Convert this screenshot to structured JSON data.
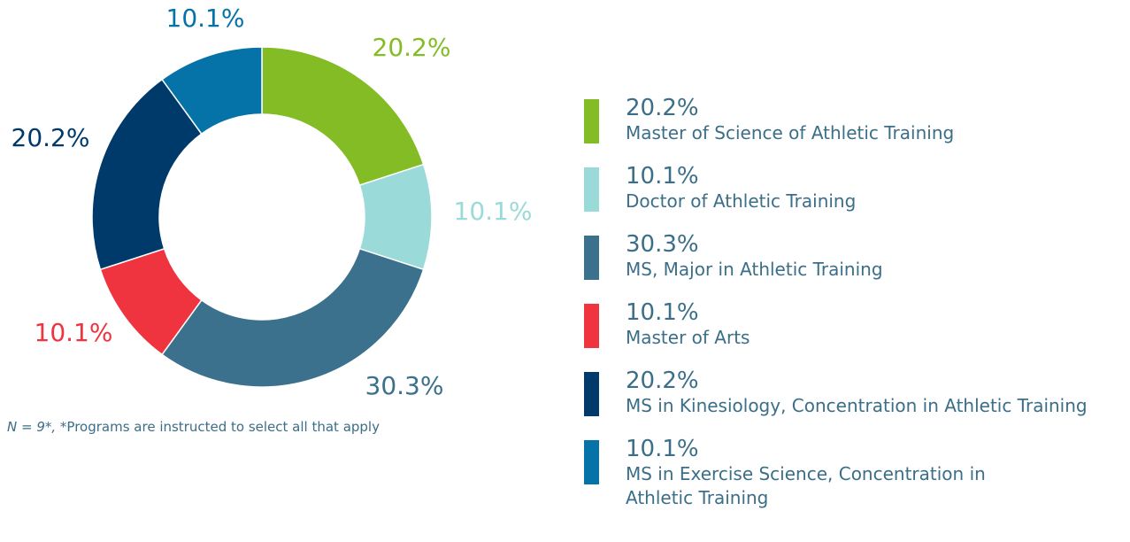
{
  "chart_data": {
    "type": "donut",
    "categories": [
      "Master of Science of Athletic Training",
      "Doctor of Athletic Training",
      "MS, Major in Athletic Training",
      "Master of Arts",
      "MS in Kinesiology, Concentration in Athletic Training",
      "MS in Exercise Science, Concentration in Athletic Training"
    ],
    "values": [
      20.2,
      10.1,
      30.3,
      10.1,
      20.2,
      10.1
    ],
    "value_labels": [
      "20.2%",
      "10.1%",
      "30.3%",
      "10.1%",
      "20.2%",
      "10.1%"
    ],
    "colors": [
      "#84bc26",
      "#9adad8",
      "#3b718c",
      "#f0343f",
      "#003a6b",
      "#0573a8"
    ],
    "note_n": "N = 9*,",
    "note": "*Programs are instructed to select all that apply"
  }
}
